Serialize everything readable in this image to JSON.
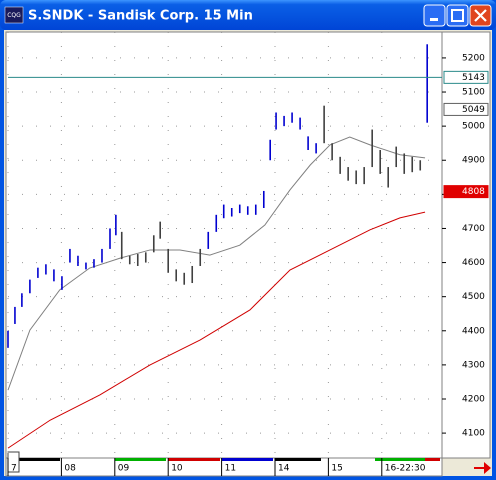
{
  "window": {
    "title": "S.SNDK - Sandisk Corp. 15 Min",
    "icon_label": "CQG"
  },
  "chart_data": {
    "type": "ohlc",
    "xlim": [
      0,
      8.09
    ],
    "ylim": [
      4027,
      5276
    ],
    "yticks": [
      4100,
      4200,
      4300,
      4400,
      4500,
      4600,
      4700,
      4800,
      4900,
      5000,
      5100,
      5200
    ],
    "xticks": [
      {
        "value": 0,
        "label": "7"
      },
      {
        "value": 1,
        "label": "08"
      },
      {
        "value": 2,
        "label": "09"
      },
      {
        "value": 3,
        "label": "10"
      },
      {
        "value": 4,
        "label": "11"
      },
      {
        "value": 5,
        "label": "14"
      },
      {
        "value": 6,
        "label": "15"
      },
      {
        "value": 7,
        "label": "16-22:30"
      }
    ],
    "grid": true,
    "price_segments": [
      {
        "color": "#0000d0",
        "x": [
          0.0,
          0.13,
          0.26,
          0.41,
          0.56,
          0.71,
          0.86,
          1.01,
          1.16,
          1.31,
          1.46,
          1.61,
          1.76,
          1.91,
          2.02
        ],
        "high": [
          4400,
          4470,
          4510,
          4550,
          4585,
          4595,
          4580,
          4560,
          4640,
          4620,
          4600,
          4610,
          4640,
          4700,
          4740
        ],
        "low": [
          4350,
          4420,
          4470,
          4510,
          4555,
          4565,
          4545,
          4520,
          4600,
          4590,
          4580,
          4585,
          4600,
          4640,
          4680
        ]
      },
      {
        "color": "#404040",
        "x": [
          2.13,
          2.28,
          2.43,
          2.58,
          2.73,
          2.85,
          3.0,
          3.15,
          3.3,
          3.45,
          3.6
        ],
        "high": [
          4690,
          4620,
          4625,
          4630,
          4680,
          4720,
          4640,
          4580,
          4570,
          4590,
          4640
        ],
        "low": [
          4610,
          4595,
          4590,
          4600,
          4630,
          4670,
          4570,
          4545,
          4535,
          4540,
          4590
        ]
      },
      {
        "color": "#0000d0",
        "x": [
          3.75,
          3.9,
          4.04,
          4.19,
          4.34,
          4.49,
          4.64,
          4.79,
          4.91,
          5.02,
          5.17,
          5.32,
          5.47,
          5.62,
          5.77
        ],
        "high": [
          4690,
          4740,
          4770,
          4760,
          4770,
          4765,
          4770,
          4810,
          4960,
          5040,
          5030,
          5040,
          5025,
          4970,
          4950
        ],
        "low": [
          4640,
          4690,
          4730,
          4735,
          4745,
          4740,
          4740,
          4760,
          4900,
          4990,
          5000,
          5010,
          4990,
          4930,
          4920
        ]
      },
      {
        "color": "#404040",
        "x": [
          5.92,
          6.07,
          6.22,
          6.37,
          6.52,
          6.67,
          6.82,
          6.97,
          7.12,
          7.27,
          7.42,
          7.57,
          7.72
        ],
        "high": [
          5060,
          4950,
          4910,
          4880,
          4870,
          4880,
          4990,
          4930,
          4880,
          4940,
          4920,
          4910,
          4900
        ],
        "low": [
          4950,
          4900,
          4860,
          4840,
          4830,
          4830,
          4880,
          4860,
          4820,
          4880,
          4860,
          4865,
          4870
        ]
      },
      {
        "color": "#0000d0",
        "x": [
          7.85
        ],
        "high": [
          5240
        ],
        "low": [
          5010
        ]
      }
    ],
    "moving_averages": [
      {
        "color": "#808080",
        "x": [
          0,
          0.41,
          0.97,
          1.53,
          2.1,
          2.66,
          3.22,
          3.78,
          4.34,
          4.81,
          5.28,
          5.66,
          6.03,
          6.4,
          6.78,
          7.34,
          7.81
        ],
        "values": [
          4226,
          4402,
          4520,
          4584,
          4613,
          4637,
          4637,
          4622,
          4651,
          4710,
          4813,
          4886,
          4945,
          4968,
          4945,
          4916,
          4907
        ]
      },
      {
        "color": "#d00000",
        "x": [
          0,
          0.79,
          1.72,
          2.66,
          3.6,
          4.53,
          5.28,
          6.03,
          6.78,
          7.34,
          7.81
        ],
        "values": [
          4056,
          4138,
          4212,
          4300,
          4373,
          4461,
          4578,
          4637,
          4696,
          4731,
          4748
        ]
      }
    ],
    "reference_line": {
      "value": 5143,
      "color": "#2a8a8a"
    },
    "markers": [
      {
        "value": 5049,
        "color": "#606060"
      },
      {
        "value": 4808,
        "color": "#e00000"
      }
    ]
  }
}
